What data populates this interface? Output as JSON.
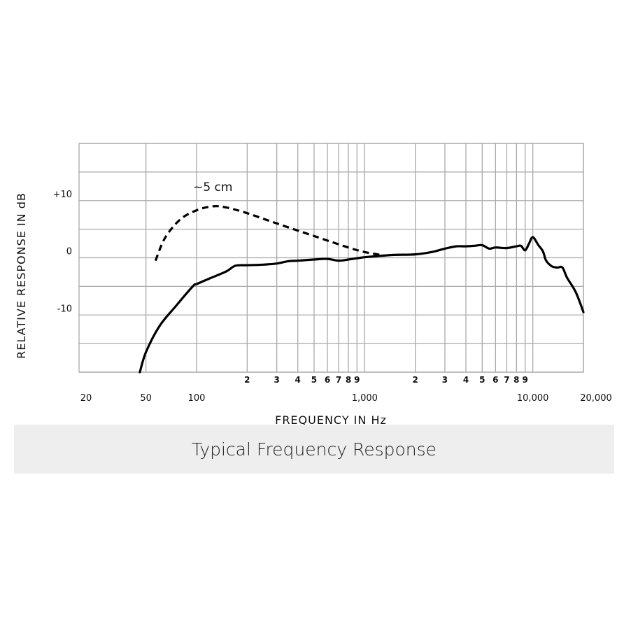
{
  "caption": "Typical Frequency Response",
  "chart_data": {
    "type": "line",
    "xlabel": "FREQUENCY IN Hz",
    "ylabel": "RELATIVE RESPONSE IN dB",
    "x_scale": "log",
    "xlim": [
      20,
      20000
    ],
    "ylim": [
      -20,
      20
    ],
    "grid": true,
    "x_major_tick_labels": [
      {
        "value": 20,
        "label": "20"
      },
      {
        "value": 50,
        "label": "50"
      },
      {
        "value": 100,
        "label": "100"
      },
      {
        "value": 1000,
        "label": "1,000"
      },
      {
        "value": 10000,
        "label": "10,000"
      },
      {
        "value": 20000,
        "label": "20,000"
      }
    ],
    "x_minor_tick_labels": [
      {
        "value": 200,
        "label": "2"
      },
      {
        "value": 300,
        "label": "3"
      },
      {
        "value": 400,
        "label": "4"
      },
      {
        "value": 500,
        "label": "5"
      },
      {
        "value": 600,
        "label": "6"
      },
      {
        "value": 700,
        "label": "7"
      },
      {
        "value": 800,
        "label": "8"
      },
      {
        "value": 900,
        "label": "9"
      },
      {
        "value": 2000,
        "label": "2"
      },
      {
        "value": 3000,
        "label": "3"
      },
      {
        "value": 4000,
        "label": "4"
      },
      {
        "value": 5000,
        "label": "5"
      },
      {
        "value": 6000,
        "label": "6"
      },
      {
        "value": 7000,
        "label": "7"
      },
      {
        "value": 8000,
        "label": "8"
      },
      {
        "value": 9000,
        "label": "9"
      }
    ],
    "y_tick_labels": [
      {
        "value": 10,
        "label": "+10"
      },
      {
        "value": 0,
        "label": "0"
      },
      {
        "value": -10,
        "label": "-10"
      }
    ],
    "y_gridlines": [
      20,
      15,
      10,
      5,
      0,
      -5,
      -10,
      -15,
      -20
    ],
    "x_gridlines": [
      50,
      100,
      200,
      300,
      400,
      500,
      600,
      700,
      800,
      900,
      1000,
      2000,
      3000,
      4000,
      5000,
      6000,
      7000,
      8000,
      9000,
      10000,
      20000
    ],
    "annotations": [
      {
        "text": "~5 cm",
        "x": 125,
        "y": 11.7
      }
    ],
    "series": [
      {
        "style": "solid",
        "points": [
          [
            46,
            -20
          ],
          [
            50,
            -16.5
          ],
          [
            60,
            -12
          ],
          [
            75,
            -8.5
          ],
          [
            95,
            -5
          ],
          [
            100,
            -4.6
          ],
          [
            120,
            -3.6
          ],
          [
            150,
            -2.4
          ],
          [
            170,
            -1.4
          ],
          [
            200,
            -1.3
          ],
          [
            250,
            -1.2
          ],
          [
            300,
            -1.0
          ],
          [
            350,
            -0.6
          ],
          [
            400,
            -0.5
          ],
          [
            500,
            -0.3
          ],
          [
            600,
            -0.2
          ],
          [
            700,
            -0.5
          ],
          [
            800,
            -0.3
          ],
          [
            1000,
            0.1
          ],
          [
            1200,
            0.3
          ],
          [
            1500,
            0.5
          ],
          [
            2000,
            0.6
          ],
          [
            2500,
            1.0
          ],
          [
            3000,
            1.6
          ],
          [
            3500,
            2.0
          ],
          [
            4000,
            2.0
          ],
          [
            4500,
            2.1
          ],
          [
            5000,
            2.2
          ],
          [
            5500,
            1.6
          ],
          [
            6000,
            1.8
          ],
          [
            7000,
            1.7
          ],
          [
            8000,
            2.0
          ],
          [
            8500,
            2.1
          ],
          [
            9000,
            1.3
          ],
          [
            9500,
            2.5
          ],
          [
            10000,
            3.6
          ],
          [
            10800,
            2.2
          ],
          [
            11500,
            1.1
          ],
          [
            12000,
            -0.5
          ],
          [
            13000,
            -1.5
          ],
          [
            14000,
            -1.7
          ],
          [
            15000,
            -1.7
          ],
          [
            16000,
            -3.5
          ],
          [
            18000,
            -6
          ],
          [
            20000,
            -9.5
          ]
        ]
      },
      {
        "style": "dashed",
        "name": "~5 cm",
        "points": [
          [
            57,
            -0.5
          ],
          [
            65,
            3.5
          ],
          [
            80,
            6.7
          ],
          [
            100,
            8.3
          ],
          [
            125,
            9.0
          ],
          [
            150,
            8.8
          ],
          [
            200,
            7.8
          ],
          [
            300,
            6.0
          ],
          [
            500,
            3.8
          ],
          [
            800,
            1.8
          ],
          [
            1000,
            1.0
          ],
          [
            1300,
            0.4
          ]
        ]
      }
    ]
  }
}
